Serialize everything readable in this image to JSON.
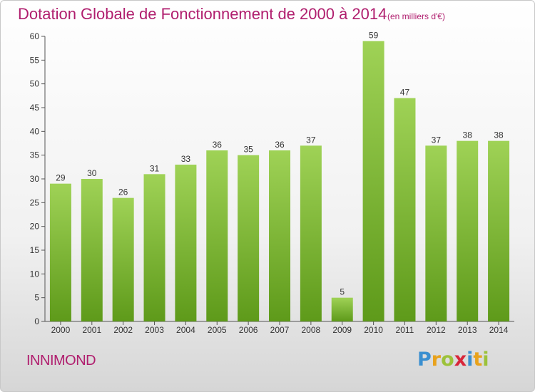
{
  "header": {
    "title": "Dotation Globale de Fonctionnement de 2000 à 2014",
    "subtitle": "(en milliers d'€)"
  },
  "footer": {
    "commune": "INNIMOND",
    "logo_letters": [
      "P",
      "r",
      "o",
      "x",
      "i",
      "t",
      "i"
    ],
    "logo_colors": [
      "#3a8fd0",
      "#e8a21c",
      "#9cc23a",
      "#d8263a",
      "#3a8fd0",
      "#e8a21c",
      "#9cc23a"
    ]
  },
  "chart_data": {
    "type": "bar",
    "title": "Dotation Globale de Fonctionnement de 2000 à 2014",
    "subtitle": "(en milliers d'€)",
    "categories": [
      "2000",
      "2001",
      "2002",
      "2003",
      "2004",
      "2005",
      "2006",
      "2007",
      "2008",
      "2009",
      "2010",
      "2011",
      "2012",
      "2013",
      "2014"
    ],
    "values": [
      29,
      30,
      26,
      31,
      33,
      36,
      35,
      36,
      37,
      5,
      59,
      47,
      37,
      38,
      38
    ],
    "xlabel": "",
    "ylabel": "",
    "ylim": [
      0,
      60
    ],
    "yticks": [
      0,
      5,
      10,
      15,
      20,
      25,
      30,
      35,
      40,
      45,
      50,
      55,
      60
    ],
    "grid": false,
    "data_labels": true,
    "bar_color_top": "#9fd256",
    "bar_color_bottom": "#5e9a1a"
  }
}
